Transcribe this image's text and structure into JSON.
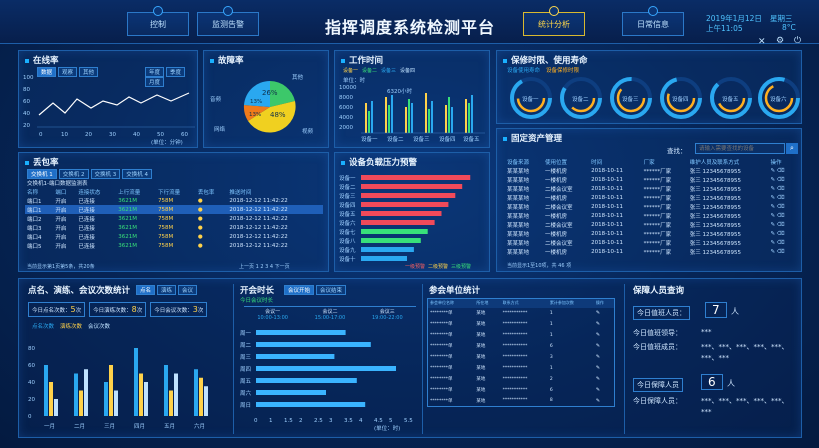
{
  "header": {
    "title": "指挥调度系统检测平台",
    "nav_left": [
      "控制",
      "监测告警"
    ],
    "nav_right": [
      "统计分析",
      "日常信息"
    ],
    "date": "2019年1月12日",
    "weekday": "星期三",
    "time": "上午11:05",
    "temp": "8°C"
  },
  "online": {
    "title": "在线率",
    "tabs": [
      "数据",
      "观察",
      "其他"
    ],
    "right_tabs": [
      "年度",
      "季度",
      "月度"
    ],
    "y_ticks": [
      "100",
      "80",
      "60",
      "40",
      "20",
      "0"
    ],
    "x_ticks": [
      "0",
      "10",
      "20",
      "30",
      "40",
      "50",
      "60"
    ],
    "unit": "(单位：分钟)"
  },
  "fault": {
    "title": "故障率",
    "slices": [
      {
        "label": "其他",
        "value": 26,
        "color": "#3cc86a"
      },
      {
        "label": "视频",
        "value": 48,
        "color": "#f0d020"
      },
      {
        "label": "网络",
        "value": 13,
        "color": "#f07a1a"
      },
      {
        "label": "音频",
        "value": 13,
        "color": "#2aa8f0"
      }
    ],
    "labels": [
      "26%",
      "48%",
      "13%",
      "13%"
    ]
  },
  "worktime": {
    "title": "工作时间",
    "legend": [
      "设备一",
      "设备二",
      "设备三",
      "设备四"
    ],
    "tabs": [
      "年度",
      "季度",
      "月度"
    ],
    "unit": "单位：时",
    "y_ticks": [
      "10000",
      "8000",
      "6000",
      "4000",
      "2000",
      "0"
    ],
    "annot": "6320小时",
    "x_ticks": [
      "设备一",
      "设备二",
      "设备三",
      "设备四",
      "设备五"
    ]
  },
  "warranty": {
    "title": "保修时限、使用寿命",
    "legend": [
      "设备使用寿命",
      "设备保修时限"
    ],
    "gauges": [
      "设备一",
      "设备二",
      "设备三",
      "设备四",
      "设备五",
      "设备六"
    ]
  },
  "assets": {
    "title": "固定资产管理",
    "search_label": "查找：",
    "search_placeholder": "请输入需要查找的设备",
    "columns": [
      "设备来源",
      "使用位置",
      "时间",
      "厂家",
      "维护人员及联系方式",
      "操作"
    ],
    "rows": [
      [
        "某某某地",
        "一楼机房",
        "2018-10-11",
        "******厂家",
        "张三 12345678955"
      ],
      [
        "某某某地",
        "一楼机房",
        "2018-10-11",
        "******厂家",
        "张三 12345678955"
      ],
      [
        "某某某地",
        "二楼会议室",
        "2018-10-11",
        "******厂家",
        "张三 12345678955"
      ],
      [
        "某某某地",
        "一楼机房",
        "2018-10-11",
        "******厂家",
        "张三 12345678955"
      ],
      [
        "某某某地",
        "二楼会议室",
        "2018-10-11",
        "******厂家",
        "张三 12345678955"
      ],
      [
        "某某某地",
        "一楼机房",
        "2018-10-11",
        "******厂家",
        "张三 12345678955"
      ],
      [
        "某某某地",
        "二楼会议室",
        "2018-10-11",
        "******厂家",
        "张三 12345678955"
      ],
      [
        "某某某地",
        "一楼机房",
        "2018-10-11",
        "******厂家",
        "张三 12345678955"
      ],
      [
        "某某某地",
        "二楼会议室",
        "2018-10-11",
        "******厂家",
        "张三 12345678955"
      ],
      [
        "某某某地",
        "一楼机房",
        "2018-10-11",
        "******厂家",
        "张三 12345678955"
      ]
    ],
    "footer": "当前显示1至10项，共 46 项"
  },
  "packet": {
    "title": "丢包率",
    "tabs": [
      "交换机 1",
      "交换机 2",
      "交换机 3",
      "交换机 4"
    ],
    "subtitle": "交换机1-端口数据监测表",
    "columns": [
      "名称",
      "端口",
      "连接状态",
      "上行流量",
      "下行流量",
      "丢包率",
      "推送时间"
    ],
    "rows": [
      [
        "端口1",
        "开启",
        "已连接",
        "3621M",
        "758M",
        "",
        "2018-12-12 11:42:22"
      ],
      [
        "端口1",
        "开启",
        "已连接",
        "3621M",
        "758M",
        "",
        "2018-12-12 11:42:22"
      ],
      [
        "端口2",
        "开启",
        "已连接",
        "3621M",
        "758M",
        "",
        "2018-12-12 11:42:22"
      ],
      [
        "端口3",
        "开启",
        "已连接",
        "3621M",
        "758M",
        "",
        "2018-12-12 11:42:22"
      ],
      [
        "端口4",
        "开启",
        "已连接",
        "3621M",
        "758M",
        "",
        "2018-12-12 11:42:22"
      ],
      [
        "端口5",
        "开启",
        "已连接",
        "3621M",
        "758M",
        "",
        "2018-12-12 11:42:22"
      ]
    ],
    "footer": "当前显示第1页第5条，共20条",
    "pager": "上一页 1 2 3 4 下一页"
  },
  "pressure": {
    "title": "设备负载压力预警",
    "devices": [
      "设备一",
      "设备二",
      "设备三",
      "设备四",
      "设备五",
      "设备六",
      "设备七",
      "设备八",
      "设备九",
      "设备十"
    ],
    "values": [
      95,
      88,
      82,
      76,
      70,
      64,
      58,
      52,
      46,
      40
    ],
    "legend": [
      "一级预警",
      "二级预警",
      "三级预警"
    ]
  },
  "drills": {
    "title": "点名、演练、会议次数统计",
    "tabs": [
      "点名",
      "演练",
      "会议"
    ],
    "counts": [
      {
        "label": "今日点名次数：",
        "value": "5",
        "unit": "次"
      },
      {
        "label": "今日演练次数：",
        "value": "8",
        "unit": "次"
      },
      {
        "label": "今日会议次数：",
        "value": "3",
        "unit": "次"
      }
    ],
    "legend": [
      "点名次数",
      "演练次数",
      "会议次数"
    ],
    "months": [
      "一月",
      "二月",
      "三月",
      "四月",
      "五月",
      "六月"
    ]
  },
  "meeting": {
    "title": "开会时长",
    "tabs": [
      "会议开始",
      "会议结束"
    ],
    "today": "今日会议时长",
    "slots": [
      {
        "name": "会议一",
        "range": "10:00-13:00"
      },
      {
        "name": "会议二",
        "range": "15:00-17:00"
      },
      {
        "name": "会议三",
        "range": "19:00-22:00"
      }
    ],
    "days": [
      "周一",
      "周二",
      "周三",
      "周四",
      "周五",
      "周六",
      "周日"
    ],
    "x_ticks": [
      "0",
      "1",
      "1.5",
      "2",
      "2.5",
      "3",
      "3.5",
      "4",
      "4.5",
      "5",
      "5.5"
    ],
    "unit": "(单位：时)"
  },
  "units": {
    "title": "参会单位统计",
    "columns": [
      "参会单位名称",
      "所在地",
      "联系方式",
      "累计参加次数",
      "操作"
    ],
    "rows": [
      [
        "********单",
        "某地",
        "***********",
        "1"
      ],
      [
        "********单",
        "某地",
        "***********",
        "1"
      ],
      [
        "********单",
        "某地",
        "***********",
        "1"
      ],
      [
        "********单",
        "某地",
        "***********",
        "6"
      ],
      [
        "********单",
        "某地",
        "***********",
        "3"
      ],
      [
        "********单",
        "某地",
        "***********",
        "1"
      ],
      [
        "********单",
        "某地",
        "***********",
        "2"
      ],
      [
        "********单",
        "某地",
        "***********",
        "6"
      ],
      [
        "********单",
        "某地",
        "***********",
        "8"
      ]
    ]
  },
  "staff": {
    "title": "保障人员查询",
    "duty": "今日值班人员：",
    "duty_count": "7",
    "duty_unit": "人",
    "leader": "今日值班领导：",
    "leader_val": "***",
    "members": "今日值班成员：",
    "members_val": "***、***、***、***、***、***、***",
    "guard": "今日保障人员",
    "guard_count": "6",
    "guard_unit": "人",
    "guard_list": "今日保障人员：",
    "guard_val": "***、***、***、***、***、***"
  }
}
